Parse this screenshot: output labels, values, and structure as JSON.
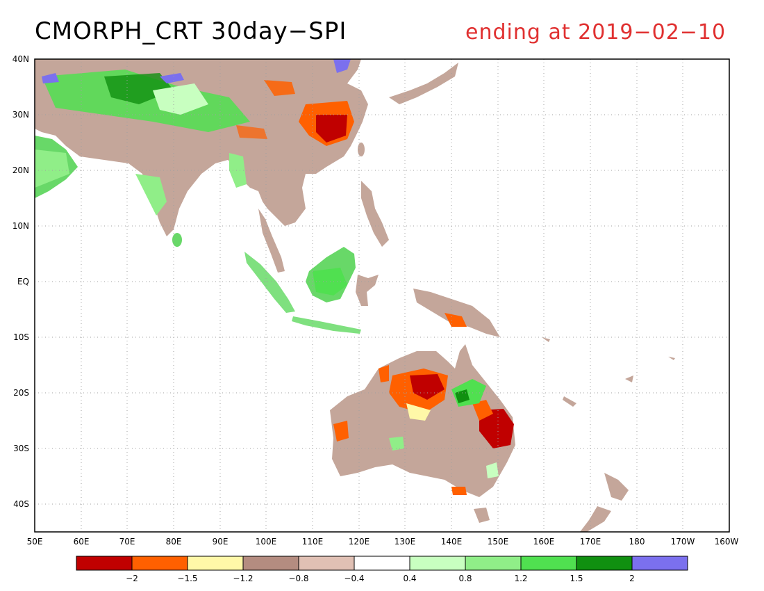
{
  "title": "CMORPH_CRT 30day−SPI",
  "subtitle": "ending at 2019−02−10",
  "map": {
    "lat_labels": [
      "40N",
      "30N",
      "20N",
      "10N",
      "EQ",
      "10S",
      "20S",
      "30S",
      "40S"
    ],
    "lon_labels": [
      "50E",
      "60E",
      "70E",
      "80E",
      "90E",
      "100E",
      "110E",
      "120E",
      "130E",
      "140E",
      "150E",
      "160E",
      "170E",
      "180",
      "170W",
      "160W"
    ]
  },
  "legend": {
    "colors": [
      "#c00000",
      "#ff6000",
      "#fff8a8",
      "#b48c80",
      "#e0c0b4",
      "#ffffff",
      "#c8ffc0",
      "#90ee88",
      "#50e050",
      "#109010",
      "#7b70ee"
    ],
    "labels": [
      "−2",
      "−1.5",
      "−1.2",
      "−0.8",
      "−0.4",
      "0.4",
      "0.8",
      "1.2",
      "1.5",
      "2"
    ]
  },
  "colors": {
    "dry_strong": "#c00000",
    "dry": "#ff6000",
    "dry_weak": "#b48c80",
    "wet": "#50e050",
    "wet_strong": "#7b70ee"
  }
}
